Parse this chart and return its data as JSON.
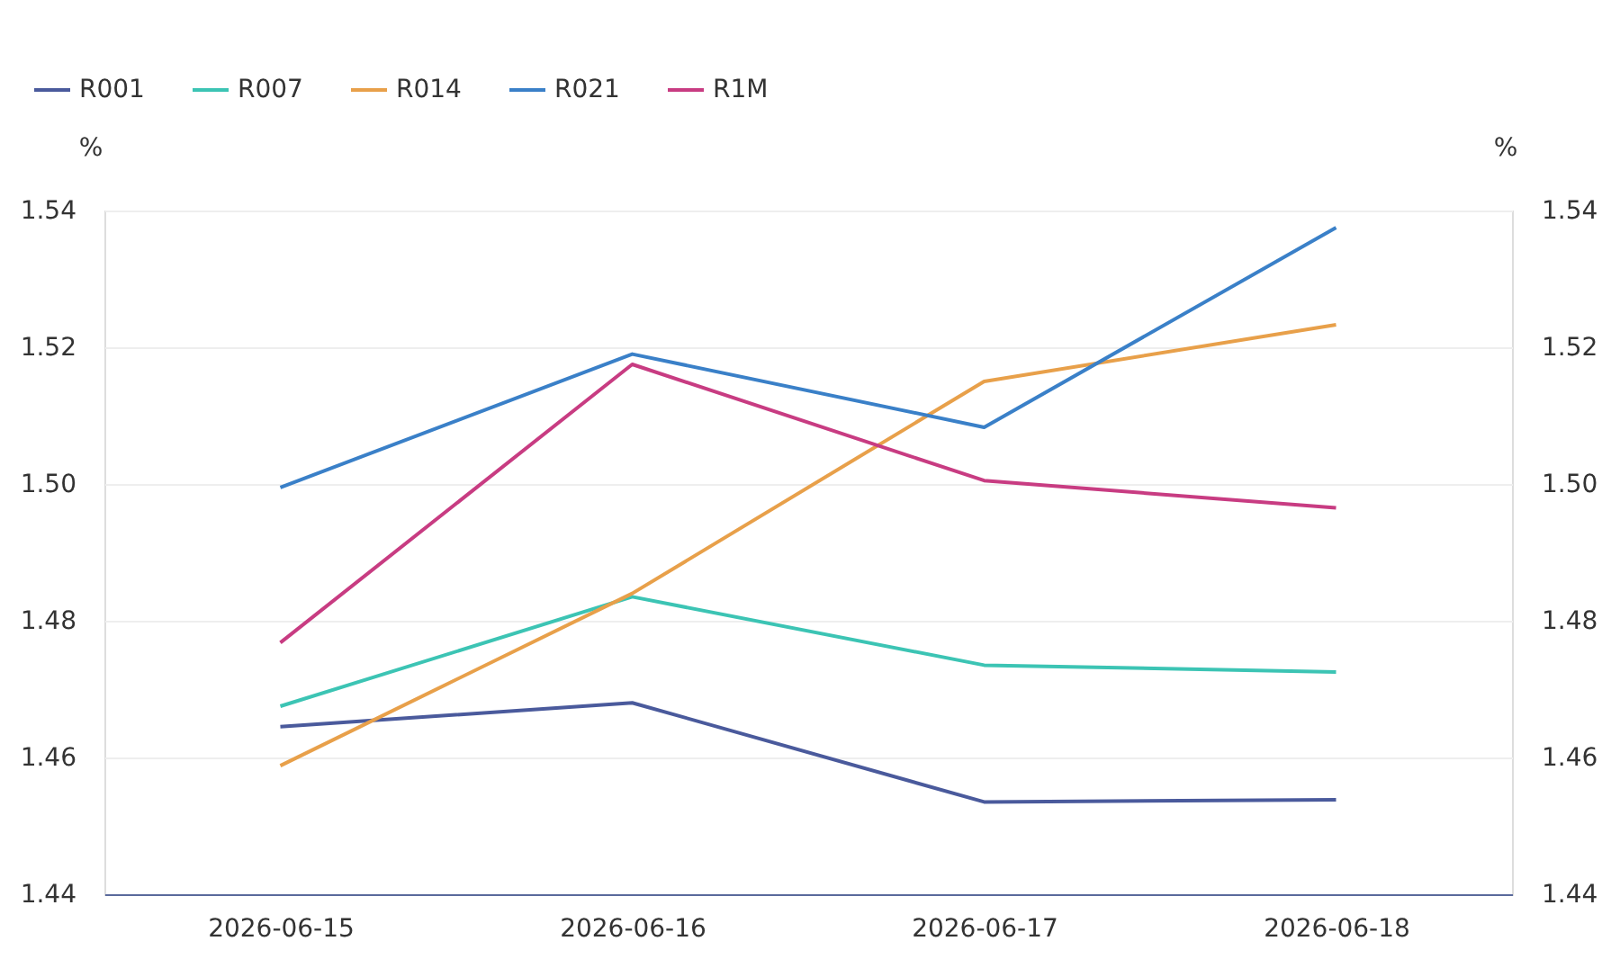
{
  "chart_data": {
    "type": "line",
    "categories": [
      "2026-06-15",
      "2026-06-16",
      "2026-06-17",
      "2026-06-18"
    ],
    "ylabel": "%",
    "y2label": "%",
    "ylim": [
      1.44,
      1.54
    ],
    "yticks": [
      1.44,
      1.46,
      1.48,
      {
        "value": 1.5,
        "label": "1.50"
      },
      1.52,
      1.54
    ],
    "y2lim": [
      1.44,
      1.54
    ],
    "y2ticks": [
      1.44,
      1.46,
      1.48,
      {
        "value": 1.5,
        "label": "1.50"
      },
      1.52,
      1.54
    ],
    "grid": "y",
    "legend": "top left",
    "marker": "none",
    "line_style": "solid",
    "series": [
      {
        "name": "R001",
        "color": "#4a5a9c",
        "values": [
          1.4645,
          1.468,
          1.4535,
          1.4538
        ]
      },
      {
        "name": "R007",
        "color": "#3cc4b4",
        "values": [
          1.4675,
          1.4835,
          1.4735,
          1.4725
        ]
      },
      {
        "name": "R014",
        "color": "#e8a04a",
        "values": [
          1.4588,
          1.484,
          1.515,
          1.5233
        ]
      },
      {
        "name": "R021",
        "color": "#3a80c8",
        "values": [
          1.4995,
          1.519,
          1.5083,
          1.5375
        ]
      },
      {
        "name": "R1M",
        "color": "#c83c82",
        "values": [
          1.4768,
          1.5175,
          1.5005,
          1.4965
        ]
      }
    ]
  }
}
